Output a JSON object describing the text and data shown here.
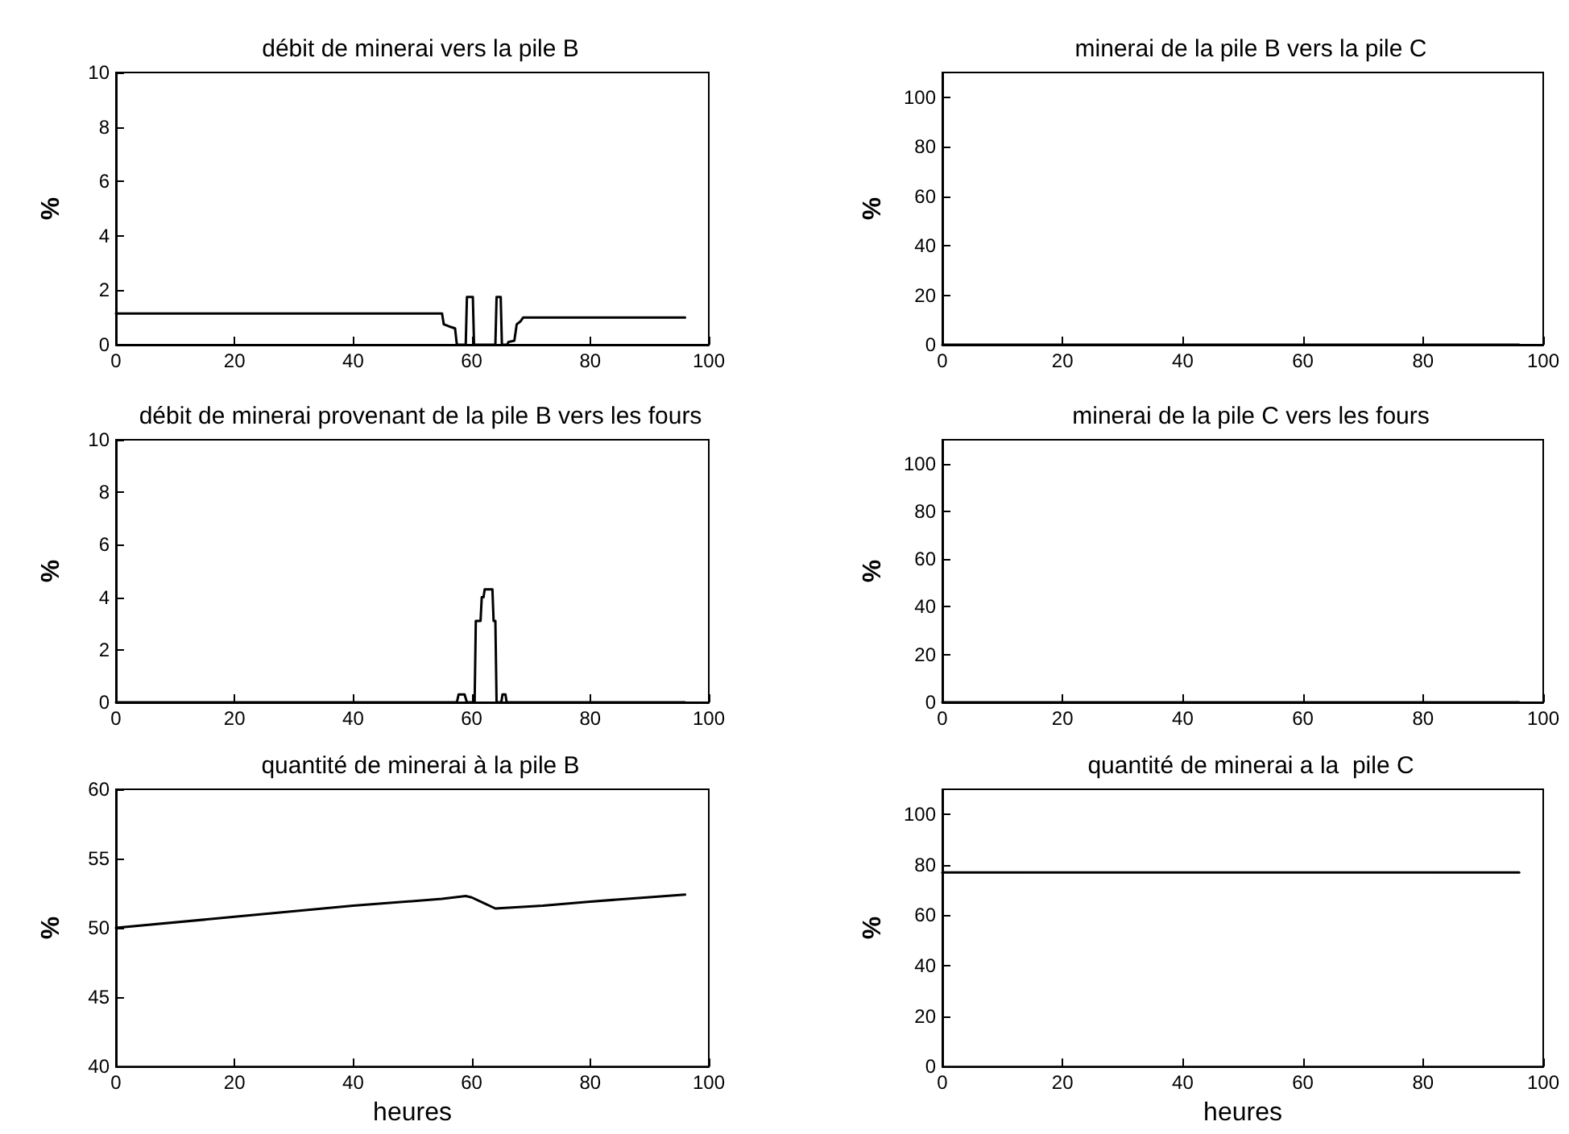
{
  "chart_data": [
    {
      "type": "line",
      "title": "débit de minerai vers la pile B",
      "ylabel": "%",
      "xlim": [
        0,
        100
      ],
      "xticks": [
        0,
        20,
        40,
        60,
        80,
        100
      ],
      "ylim": [
        0,
        10
      ],
      "yticks": [
        0,
        2,
        4,
        6,
        8,
        10
      ],
      "x": [
        0,
        55,
        55.3,
        56.5,
        57.2,
        57.5,
        59,
        59.2,
        60.2,
        60.4,
        64,
        64.2,
        64.9,
        65.1,
        66,
        66.2,
        67.2,
        67.6,
        68.2,
        68.7,
        96
      ],
      "series": [
        {
          "color": "#000000",
          "values": [
            1.15,
            1.15,
            0.75,
            0.65,
            0.6,
            0,
            0,
            1.75,
            1.75,
            0,
            0,
            1.75,
            1.75,
            0,
            0,
            0.1,
            0.15,
            0.75,
            0.85,
            1.0,
            1.0
          ]
        }
      ]
    },
    {
      "type": "line",
      "title": "minerai de la pile B vers la pile C",
      "ylabel": "%",
      "xlim": [
        0,
        100
      ],
      "xticks": [
        0,
        20,
        40,
        60,
        80,
        100
      ],
      "ylim": [
        0,
        110
      ],
      "yticks": [
        0,
        20,
        40,
        60,
        80,
        100
      ],
      "x": [
        0,
        96
      ],
      "series": [
        {
          "color": "#000000",
          "values": [
            0,
            0
          ]
        }
      ]
    },
    {
      "type": "line",
      "title": "débit de minerai provenant de la pile B vers les fours",
      "ylabel": "%",
      "xlim": [
        0,
        100
      ],
      "xticks": [
        0,
        20,
        40,
        60,
        80,
        100
      ],
      "ylim": [
        0,
        10
      ],
      "yticks": [
        0,
        2,
        4,
        6,
        8,
        10
      ],
      "x": [
        0,
        57.5,
        57.8,
        58.8,
        59.2,
        60.5,
        60.7,
        61.5,
        61.7,
        62,
        62.2,
        63.5,
        63.7,
        64,
        64.2,
        65,
        65.2,
        65.7,
        65.9,
        96
      ],
      "series": [
        {
          "color": "#000000",
          "values": [
            0,
            0,
            0.3,
            0.3,
            0,
            0,
            3.1,
            3.1,
            4.0,
            4.0,
            4.3,
            4.3,
            3.1,
            3.1,
            0,
            0,
            0.3,
            0.3,
            0,
            0
          ]
        }
      ]
    },
    {
      "type": "line",
      "title": "minerai de la pile C vers les fours",
      "ylabel": "%",
      "xlim": [
        0,
        100
      ],
      "xticks": [
        0,
        20,
        40,
        60,
        80,
        100
      ],
      "ylim": [
        0,
        110
      ],
      "yticks": [
        0,
        20,
        40,
        60,
        80,
        100
      ],
      "x": [
        0,
        96
      ],
      "series": [
        {
          "color": "#000000",
          "values": [
            0,
            0
          ]
        }
      ]
    },
    {
      "type": "line",
      "title": "quantité de minerai à la pile B",
      "ylabel": "%",
      "xlabel": "heures",
      "xlim": [
        0,
        100
      ],
      "xticks": [
        0,
        20,
        40,
        60,
        80,
        100
      ],
      "ylim": [
        40,
        60
      ],
      "yticks": [
        40,
        45,
        50,
        55,
        60
      ],
      "x": [
        0,
        20,
        40,
        55,
        59,
        60,
        62,
        64,
        72,
        80,
        96
      ],
      "series": [
        {
          "color": "#000000",
          "values": [
            50,
            50.8,
            51.6,
            52.1,
            52.3,
            52.2,
            51.8,
            51.4,
            51.6,
            51.9,
            52.4
          ]
        }
      ]
    },
    {
      "type": "line",
      "title": "quantité de minerai a la  pile C",
      "ylabel": "%",
      "xlabel": "heures",
      "xlim": [
        0,
        100
      ],
      "xticks": [
        0,
        20,
        40,
        60,
        80,
        100
      ],
      "ylim": [
        0,
        110
      ],
      "yticks": [
        0,
        20,
        40,
        60,
        80,
        100
      ],
      "x": [
        0,
        96
      ],
      "series": [
        {
          "color": "#000000",
          "values": [
            77,
            77
          ]
        }
      ]
    }
  ]
}
